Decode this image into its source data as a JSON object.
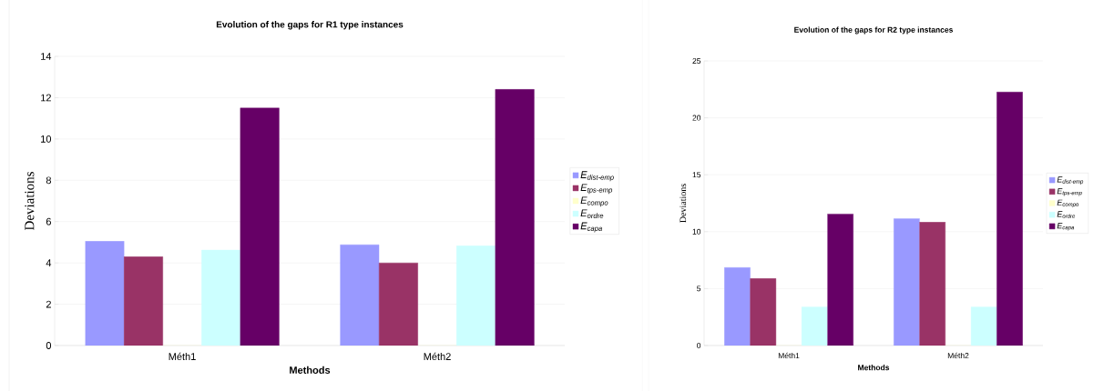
{
  "chart_data": [
    {
      "type": "bar",
      "title": "Evolution of the gaps for R1 type instances",
      "xlabel": "Methods",
      "ylabel": "Deviations",
      "categories": [
        "Méth1",
        "Méth2"
      ],
      "series": [
        {
          "name": "E$_{dist-emp}$",
          "color": "#9999ff",
          "values": [
            5.05,
            4.88
          ]
        },
        {
          "name": "E$_{tps-emp}$",
          "color": "#993366",
          "values": [
            4.3,
            4.0
          ]
        },
        {
          "name": "E$_{compo}$",
          "color": "#ffffcc",
          "values": [
            0,
            0
          ]
        },
        {
          "name": "E$_{ordre}$",
          "color": "#ccffff",
          "values": [
            4.62,
            4.83
          ]
        },
        {
          "name": "E$_{capa}$",
          "color": "#660066",
          "values": [
            11.5,
            12.4
          ]
        }
      ],
      "ylim": [
        0,
        14
      ],
      "yticks": [
        0,
        2,
        4,
        6,
        8,
        10,
        12,
        14
      ],
      "grid": "y",
      "legend": "right"
    },
    {
      "type": "bar",
      "title": "Evolution of the gaps for R2 type instances",
      "xlabel": "Methods",
      "ylabel": "Deviations",
      "categories": [
        "Méth1",
        "Méth2"
      ],
      "series": [
        {
          "name": "E$_{dist-emp}$",
          "color": "#9999ff",
          "values": [
            6.85,
            11.15
          ]
        },
        {
          "name": "E$_{tps-emp}$",
          "color": "#993366",
          "values": [
            5.88,
            10.85
          ]
        },
        {
          "name": "E$_{compo}$",
          "color": "#ffffcc",
          "values": [
            0,
            0
          ]
        },
        {
          "name": "E$_{ordre}$",
          "color": "#ccffff",
          "values": [
            3.4,
            3.4
          ]
        },
        {
          "name": "E$_{capa}$",
          "color": "#660066",
          "values": [
            11.55,
            22.27
          ]
        }
      ],
      "ylim": [
        0,
        25
      ],
      "yticks": [
        0,
        5,
        10,
        15,
        20,
        25
      ],
      "grid": "y",
      "legend": "right"
    }
  ]
}
